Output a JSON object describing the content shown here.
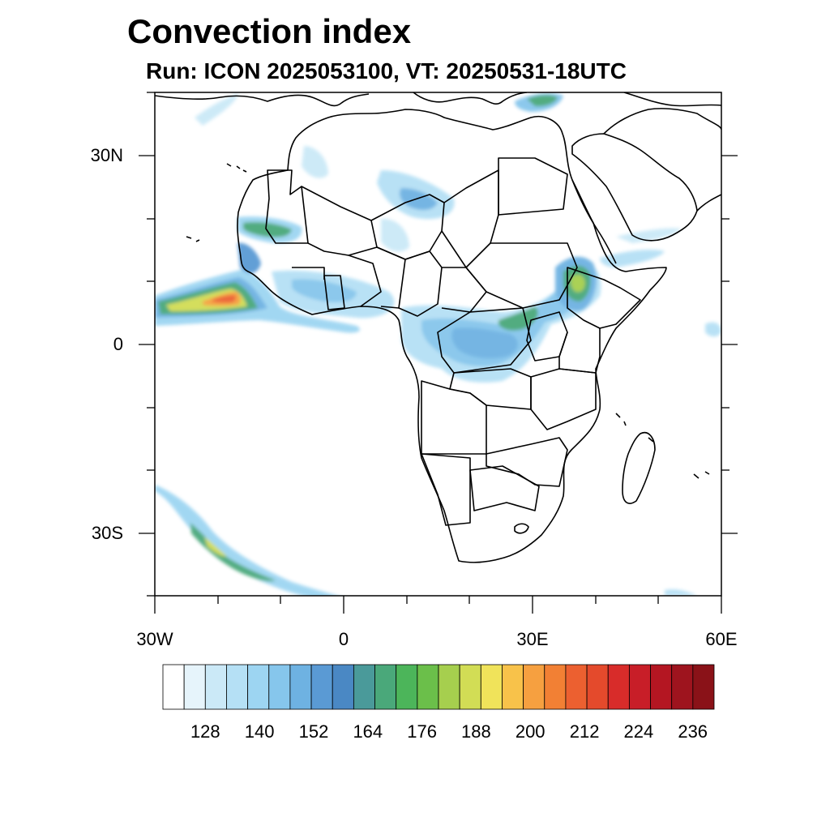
{
  "title": "Convection index",
  "subtitle": "Run: ICON 2025053100,  VT: 20250531-18UTC",
  "map": {
    "lon_range": [
      -30,
      60
    ],
    "lat_range": [
      -40,
      40
    ],
    "lat_tick_labels": [
      "30N",
      "0",
      "30S"
    ],
    "lon_tick_labels": [
      "30W",
      "0",
      "30E",
      "60E"
    ]
  },
  "colorbar": {
    "labels": [
      "128",
      "140",
      "152",
      "164",
      "176",
      "188",
      "200",
      "212",
      "224",
      "236"
    ],
    "colors": [
      "#ffffff",
      "#e6f4fb",
      "#cbe9f7",
      "#b5e0f5",
      "#9dd5f2",
      "#86c6ec",
      "#6eb2e2",
      "#5a9ad4",
      "#4a88c4",
      "#4a9a9a",
      "#4aa87a",
      "#4cb55a",
      "#6bbf4a",
      "#a6cf4e",
      "#d2dd55",
      "#f0e35a",
      "#f8c24a",
      "#f6a040",
      "#f28034",
      "#ec6030",
      "#e44a2c",
      "#d82c2a",
      "#c81e28",
      "#b41622",
      "#9e141e",
      "#8a1218"
    ]
  }
}
